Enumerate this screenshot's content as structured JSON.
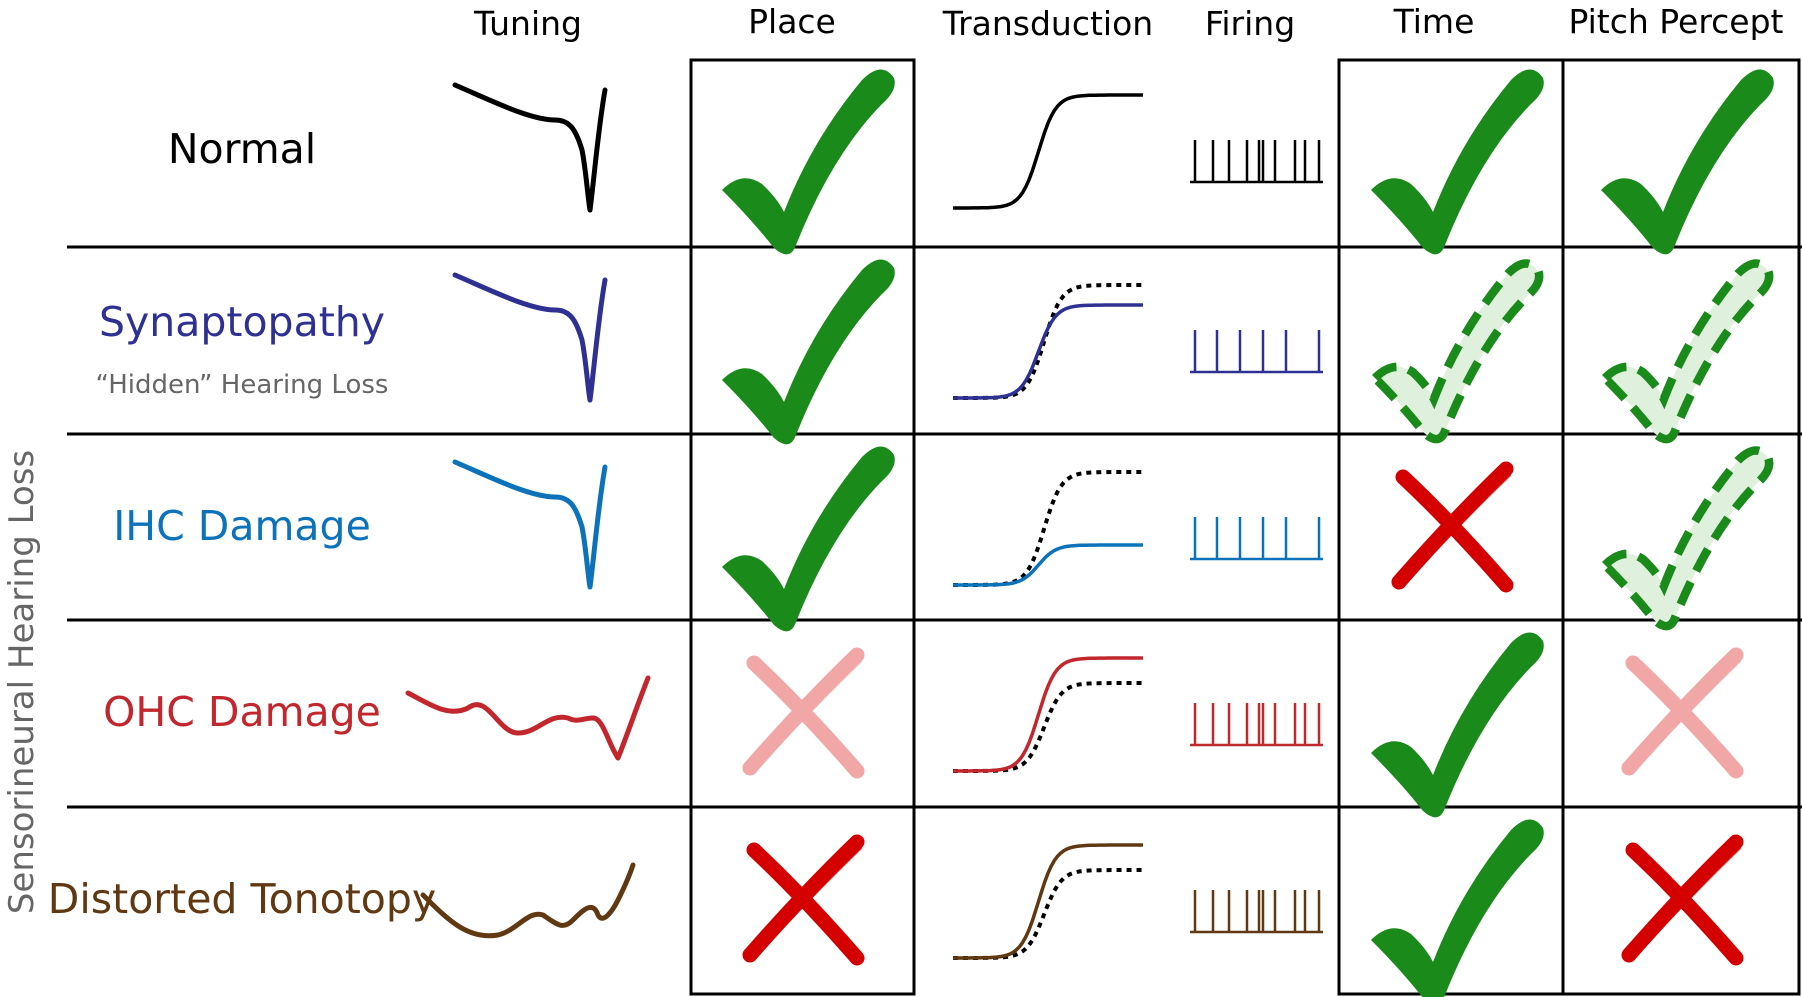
{
  "side_label": "Sensorineural Hearing Loss",
  "headers": {
    "tuning": "Tuning",
    "place": "Place",
    "transduction": "Transduction",
    "firing": "Firing",
    "time": "Time",
    "pitch": "Pitch Percept"
  },
  "rows": [
    {
      "label": "Normal",
      "sublabel": "",
      "color": "#000000",
      "tuning": "sharp",
      "transduction": "full",
      "firing": "irregular",
      "place": "check",
      "time": "check",
      "pitch": "check"
    },
    {
      "label": "Synaptopathy",
      "sublabel": "“Hidden” Hearing Loss",
      "color": "#2e3192",
      "tuning": "sharp",
      "transduction": "slightly-reduced",
      "firing": "sparse",
      "place": "check",
      "time": "dashed-check",
      "pitch": "dashed-check"
    },
    {
      "label": "IHC Damage",
      "sublabel": "",
      "color": "#0c72ba",
      "tuning": "sharp",
      "transduction": "reduced",
      "firing": "sparse",
      "place": "check",
      "time": "cross",
      "pitch": "dashed-check"
    },
    {
      "label": "OHC Damage",
      "sublabel": "",
      "color": "#c1272d",
      "tuning": "broad",
      "transduction": "increased",
      "firing": "irregular",
      "place": "faded-cross",
      "time": "check",
      "pitch": "faded-cross"
    },
    {
      "label": "Distorted Tonotopy",
      "sublabel": "",
      "color": "#603913",
      "tuning": "distorted",
      "transduction": "increased",
      "firing": "irregular",
      "place": "cross",
      "time": "check",
      "pitch": "cross"
    }
  ],
  "colors": {
    "check": "#1a8a1a",
    "dashed_check_fill": "#dff0dc",
    "cross": "#d40000",
    "faded_cross": "#f2a7a7",
    "reference_curve": "#000000",
    "grid": "#000000",
    "side_label": "#666666"
  }
}
